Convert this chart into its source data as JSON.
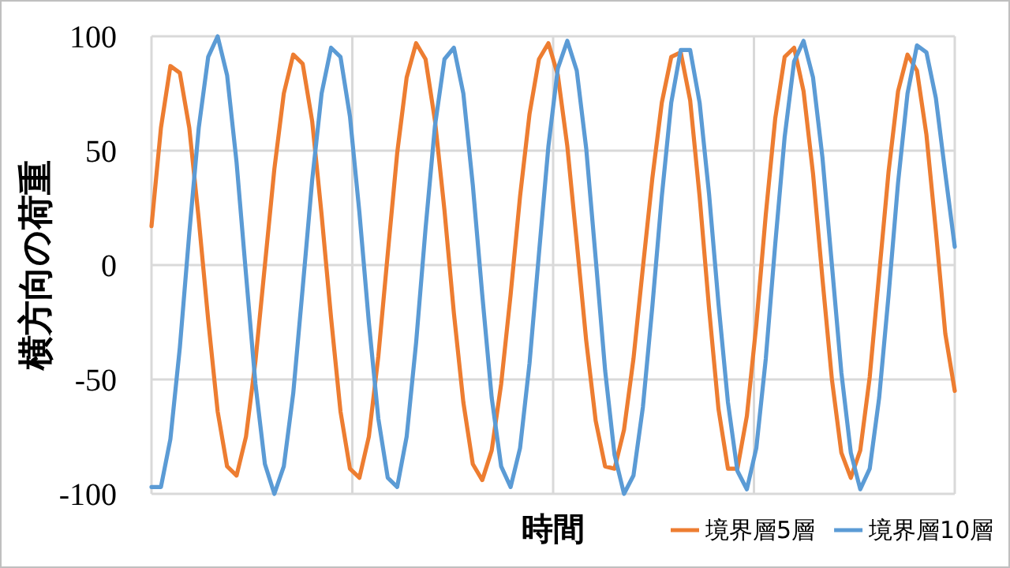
{
  "chart_data": {
    "type": "line",
    "xlabel": "時間",
    "ylabel": "横方向の荷重",
    "categories": [
      null,
      null,
      null,
      null,
      null,
      null,
      null,
      null,
      null,
      null,
      null,
      null,
      null,
      null,
      null,
      null,
      null,
      null,
      null,
      null,
      null,
      null,
      null,
      null,
      null,
      null,
      null,
      null,
      null,
      null,
      null,
      null,
      null,
      null,
      null,
      null,
      null,
      null,
      null,
      null,
      null,
      null,
      null,
      null,
      null,
      null,
      null,
      null,
      null,
      null,
      null,
      null,
      null,
      null,
      null,
      null,
      null,
      null,
      null,
      null,
      null,
      null,
      null,
      null,
      null,
      null,
      null,
      null,
      null,
      null,
      null,
      null,
      null,
      null,
      null,
      null,
      null,
      null,
      null,
      null,
      null,
      null,
      null,
      null,
      null,
      null
    ],
    "ylim": [
      -100,
      100
    ],
    "yticks": [
      -100,
      -50,
      0,
      50,
      100
    ],
    "grid": true,
    "legend": "bottom right",
    "marker": "none",
    "line_style": "solid",
    "series": [
      {
        "name": "境界層5層",
        "color": "#ed7d31",
        "values": [
          17,
          60,
          87,
          84,
          60,
          20,
          -24,
          -64,
          -88,
          -92,
          -75,
          -42,
          0,
          42,
          75,
          92,
          88,
          63,
          22,
          -23,
          -64,
          -89,
          -93,
          -75,
          -40,
          5,
          49,
          82,
          97,
          90,
          63,
          24,
          -21,
          -60,
          -87,
          -94,
          -81,
          -52,
          -13,
          30,
          66,
          90,
          97,
          83,
          52,
          10,
          -33,
          -68,
          -88,
          -89,
          -72,
          -41,
          -1,
          38,
          71,
          91,
          93,
          72,
          30,
          -19,
          -63,
          -89,
          -89,
          -66,
          -26,
          22,
          64,
          91,
          95,
          76,
          40,
          -6,
          -50,
          -82,
          -93,
          -81,
          -49,
          -4,
          41,
          76,
          92,
          85,
          57,
          15,
          -30,
          -55
        ]
      },
      {
        "name": "境界層10層",
        "color": "#5b9bd5",
        "values": [
          -97,
          -97,
          -76,
          -36,
          14,
          60,
          91,
          100,
          83,
          45,
          -4,
          -52,
          -87,
          -100,
          -88,
          -56,
          -10,
          37,
          75,
          95,
          91,
          65,
          23,
          -25,
          -67,
          -93,
          -97,
          -75,
          -34,
          16,
          61,
          90,
          95,
          75,
          35,
          -13,
          -58,
          -88,
          -97,
          -80,
          -43,
          5,
          52,
          86,
          98,
          85,
          51,
          3,
          -46,
          -83,
          -100,
          -92,
          -62,
          -18,
          30,
          71,
          94,
          94,
          71,
          31,
          -17,
          -60,
          -90,
          -98,
          -80,
          -41,
          9,
          56,
          89,
          98,
          82,
          47,
          0,
          -47,
          -82,
          -98,
          -89,
          -58,
          -13,
          36,
          75,
          96,
          93,
          73,
          40,
          8
        ]
      }
    ]
  }
}
